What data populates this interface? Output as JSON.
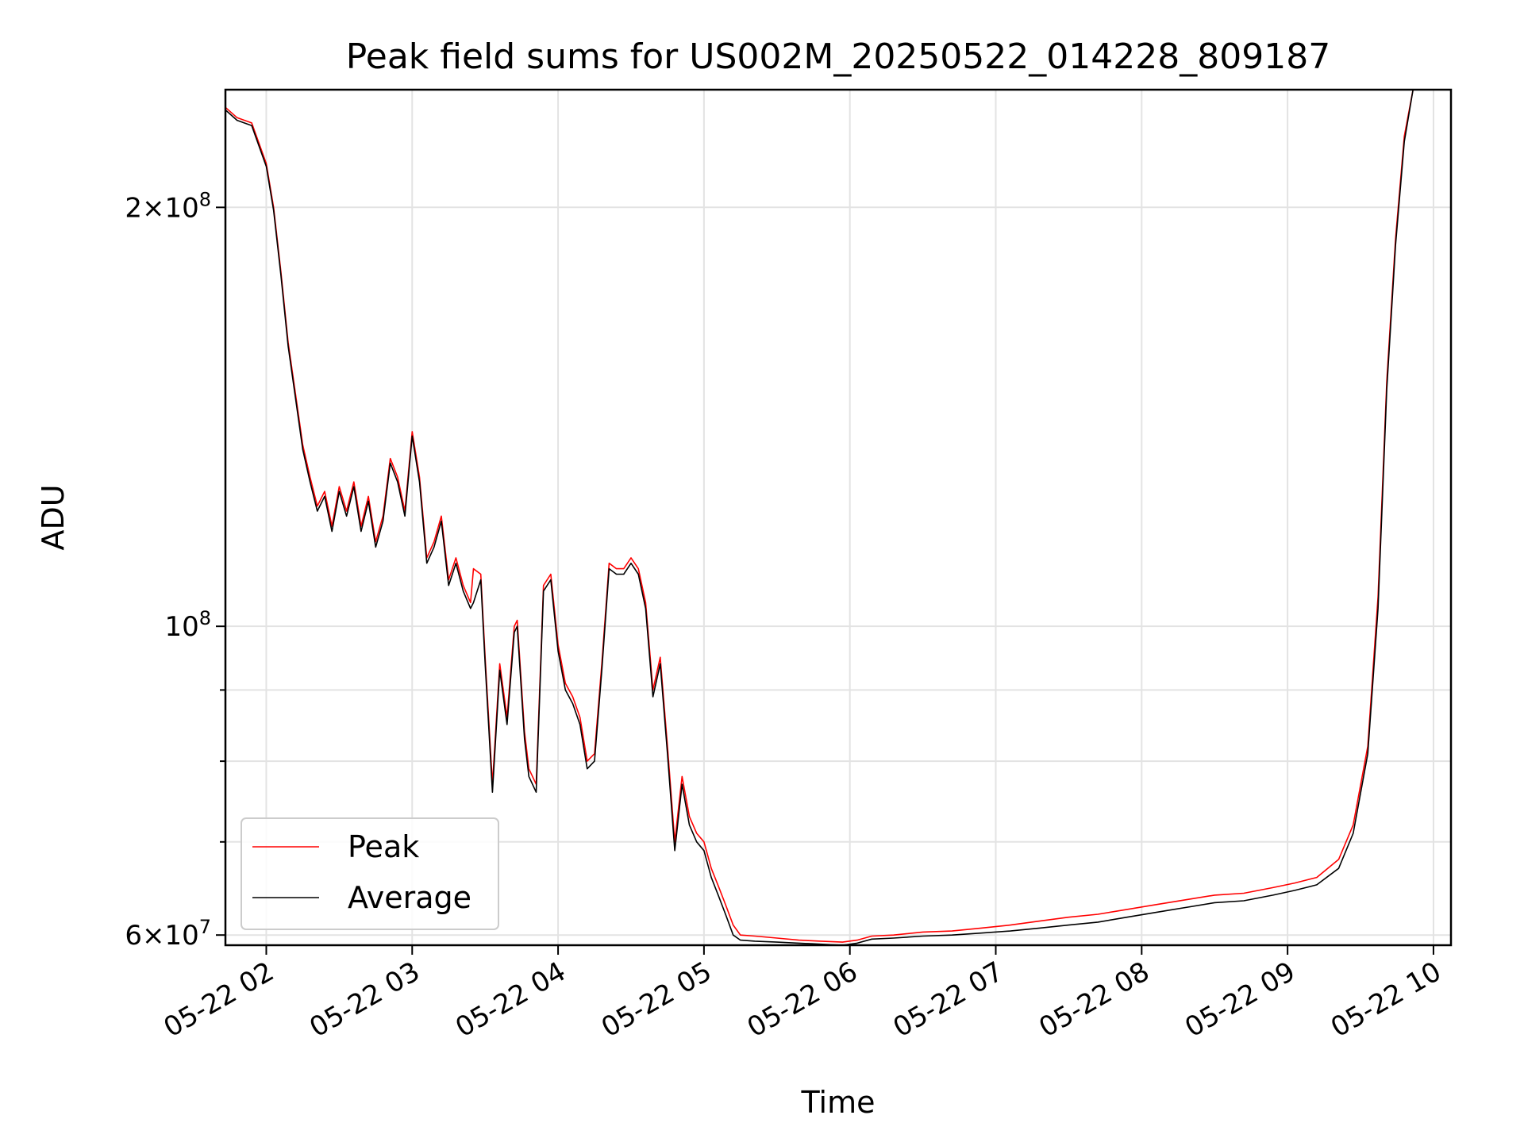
{
  "chart_data": {
    "type": "line",
    "title": "Peak field sums for US002M_20250522_014228_809187",
    "xlabel": "Time",
    "ylabel": "ADU",
    "yscale": "log",
    "ylim": [
      59000000,
      243000000
    ],
    "xlim_hours": [
      1.72,
      10.12
    ],
    "x_ticks": [
      {
        "label": "05-22 02",
        "hour": 2
      },
      {
        "label": "05-22 03",
        "hour": 3
      },
      {
        "label": "05-22 04",
        "hour": 4
      },
      {
        "label": "05-22 05",
        "hour": 5
      },
      {
        "label": "05-22 06",
        "hour": 6
      },
      {
        "label": "05-22 07",
        "hour": 7
      },
      {
        "label": "05-22 08",
        "hour": 8
      },
      {
        "label": "05-22 09",
        "hour": 9
      },
      {
        "label": "05-22 10",
        "hour": 10
      }
    ],
    "y_ticks_major": [
      {
        "value": 60000000,
        "label_base": "6×10",
        "label_exp": "7"
      },
      {
        "value": 100000000,
        "label_base": "10",
        "label_exp": "8"
      },
      {
        "value": 200000000,
        "label_base": "2×10",
        "label_exp": "8"
      }
    ],
    "y_ticks_minor": [
      70000000,
      80000000,
      90000000
    ],
    "grid": true,
    "legend_position": "bottom-left",
    "colors": {
      "peak": "#ff0000",
      "average": "#000000"
    },
    "series": [
      {
        "name": "Peak",
        "color": "#ff0000",
        "x": [
          1.72,
          1.8,
          1.9,
          2.0,
          2.05,
          2.1,
          2.15,
          2.2,
          2.25,
          2.3,
          2.35,
          2.4,
          2.45,
          2.5,
          2.55,
          2.6,
          2.65,
          2.7,
          2.75,
          2.8,
          2.85,
          2.9,
          2.95,
          3.0,
          3.05,
          3.1,
          3.15,
          3.2,
          3.25,
          3.3,
          3.35,
          3.4,
          3.42,
          3.47,
          3.5,
          3.55,
          3.6,
          3.65,
          3.7,
          3.72,
          3.77,
          3.8,
          3.85,
          3.9,
          3.95,
          4.0,
          4.05,
          4.1,
          4.15,
          4.2,
          4.25,
          4.3,
          4.35,
          4.4,
          4.45,
          4.5,
          4.55,
          4.6,
          4.65,
          4.7,
          4.75,
          4.8,
          4.85,
          4.9,
          4.95,
          5.0,
          5.05,
          5.1,
          5.15,
          5.2,
          5.25,
          5.35,
          5.5,
          5.65,
          5.8,
          5.95,
          6.05,
          6.15,
          6.3,
          6.5,
          6.7,
          6.9,
          7.1,
          7.3,
          7.5,
          7.7,
          7.9,
          8.1,
          8.3,
          8.5,
          8.7,
          8.9,
          9.05,
          9.2,
          9.35,
          9.45,
          9.55,
          9.62,
          9.68,
          9.74,
          9.8,
          9.86,
          9.92,
          9.97
        ],
        "y": [
          236000000,
          232000000,
          230000000,
          215000000,
          200000000,
          180000000,
          160000000,
          147000000,
          135000000,
          128000000,
          122000000,
          125000000,
          118000000,
          126000000,
          121000000,
          127000000,
          118000000,
          124000000,
          115000000,
          120000000,
          132000000,
          128000000,
          121000000,
          138000000,
          128000000,
          112000000,
          115000000,
          120000000,
          108000000,
          112000000,
          107000000,
          104000000,
          110000000,
          109000000,
          95000000,
          77000000,
          94000000,
          86000000,
          100000000,
          101000000,
          84000000,
          79000000,
          77000000,
          107000000,
          109000000,
          97000000,
          91000000,
          89000000,
          86000000,
          80000000,
          81000000,
          94000000,
          111000000,
          110000000,
          110000000,
          112000000,
          110000000,
          104000000,
          90000000,
          95000000,
          82000000,
          70000000,
          78000000,
          73000000,
          71000000,
          70000000,
          67000000,
          65000000,
          63000000,
          61000000,
          60000000,
          59900000,
          59700000,
          59500000,
          59400000,
          59300000,
          59500000,
          59900000,
          60000000,
          60300000,
          60400000,
          60700000,
          61000000,
          61400000,
          61800000,
          62100000,
          62600000,
          63100000,
          63600000,
          64100000,
          64300000,
          64900000,
          65400000,
          66000000,
          68000000,
          72000000,
          82000000,
          105000000,
          150000000,
          190000000,
          225000000,
          243000000,
          243000000,
          243000000
        ]
      },
      {
        "name": "Average",
        "color": "#000000",
        "x": [
          1.72,
          1.8,
          1.9,
          2.0,
          2.05,
          2.1,
          2.15,
          2.2,
          2.25,
          2.3,
          2.35,
          2.4,
          2.45,
          2.5,
          2.55,
          2.6,
          2.65,
          2.7,
          2.75,
          2.8,
          2.85,
          2.9,
          2.95,
          3.0,
          3.05,
          3.1,
          3.15,
          3.2,
          3.25,
          3.3,
          3.35,
          3.4,
          3.42,
          3.47,
          3.5,
          3.55,
          3.6,
          3.65,
          3.7,
          3.72,
          3.77,
          3.8,
          3.85,
          3.9,
          3.95,
          4.0,
          4.05,
          4.1,
          4.15,
          4.2,
          4.25,
          4.3,
          4.35,
          4.4,
          4.45,
          4.5,
          4.55,
          4.6,
          4.65,
          4.7,
          4.75,
          4.8,
          4.85,
          4.9,
          4.95,
          5.0,
          5.05,
          5.1,
          5.15,
          5.2,
          5.25,
          5.35,
          5.5,
          5.65,
          5.8,
          5.95,
          6.05,
          6.15,
          6.3,
          6.5,
          6.7,
          6.9,
          7.1,
          7.3,
          7.5,
          7.7,
          7.9,
          8.1,
          8.3,
          8.5,
          8.7,
          8.9,
          9.05,
          9.2,
          9.35,
          9.45,
          9.55,
          9.62,
          9.68,
          9.74,
          9.8,
          9.86,
          9.92,
          9.97
        ],
        "y": [
          235000000,
          231000000,
          229000000,
          214000000,
          199000000,
          179000000,
          159000000,
          146000000,
          134000000,
          127000000,
          121000000,
          124000000,
          117000000,
          125000000,
          120000000,
          126000000,
          117000000,
          123000000,
          114000000,
          119000000,
          131000000,
          127000000,
          120000000,
          137000000,
          127000000,
          111000000,
          114000000,
          119000000,
          107000000,
          111000000,
          106000000,
          103000000,
          104000000,
          108000000,
          94000000,
          76000000,
          93000000,
          85000000,
          99000000,
          100000000,
          83000000,
          78000000,
          76000000,
          106000000,
          108000000,
          96000000,
          90000000,
          88000000,
          85000000,
          79000000,
          80000000,
          93000000,
          110000000,
          109000000,
          109000000,
          111000000,
          109000000,
          103000000,
          89000000,
          94000000,
          81000000,
          69000000,
          77000000,
          72000000,
          70000000,
          69000000,
          66000000,
          64000000,
          62000000,
          60000000,
          59500000,
          59400000,
          59300000,
          59200000,
          59100000,
          59000000,
          59200000,
          59600000,
          59700000,
          59900000,
          60000000,
          60200000,
          60400000,
          60700000,
          61000000,
          61300000,
          61800000,
          62300000,
          62800000,
          63300000,
          63500000,
          64100000,
          64600000,
          65200000,
          67000000,
          71000000,
          81000000,
          103000000,
          148000000,
          188000000,
          223000000,
          243000000,
          243000000,
          243000000
        ]
      }
    ]
  }
}
